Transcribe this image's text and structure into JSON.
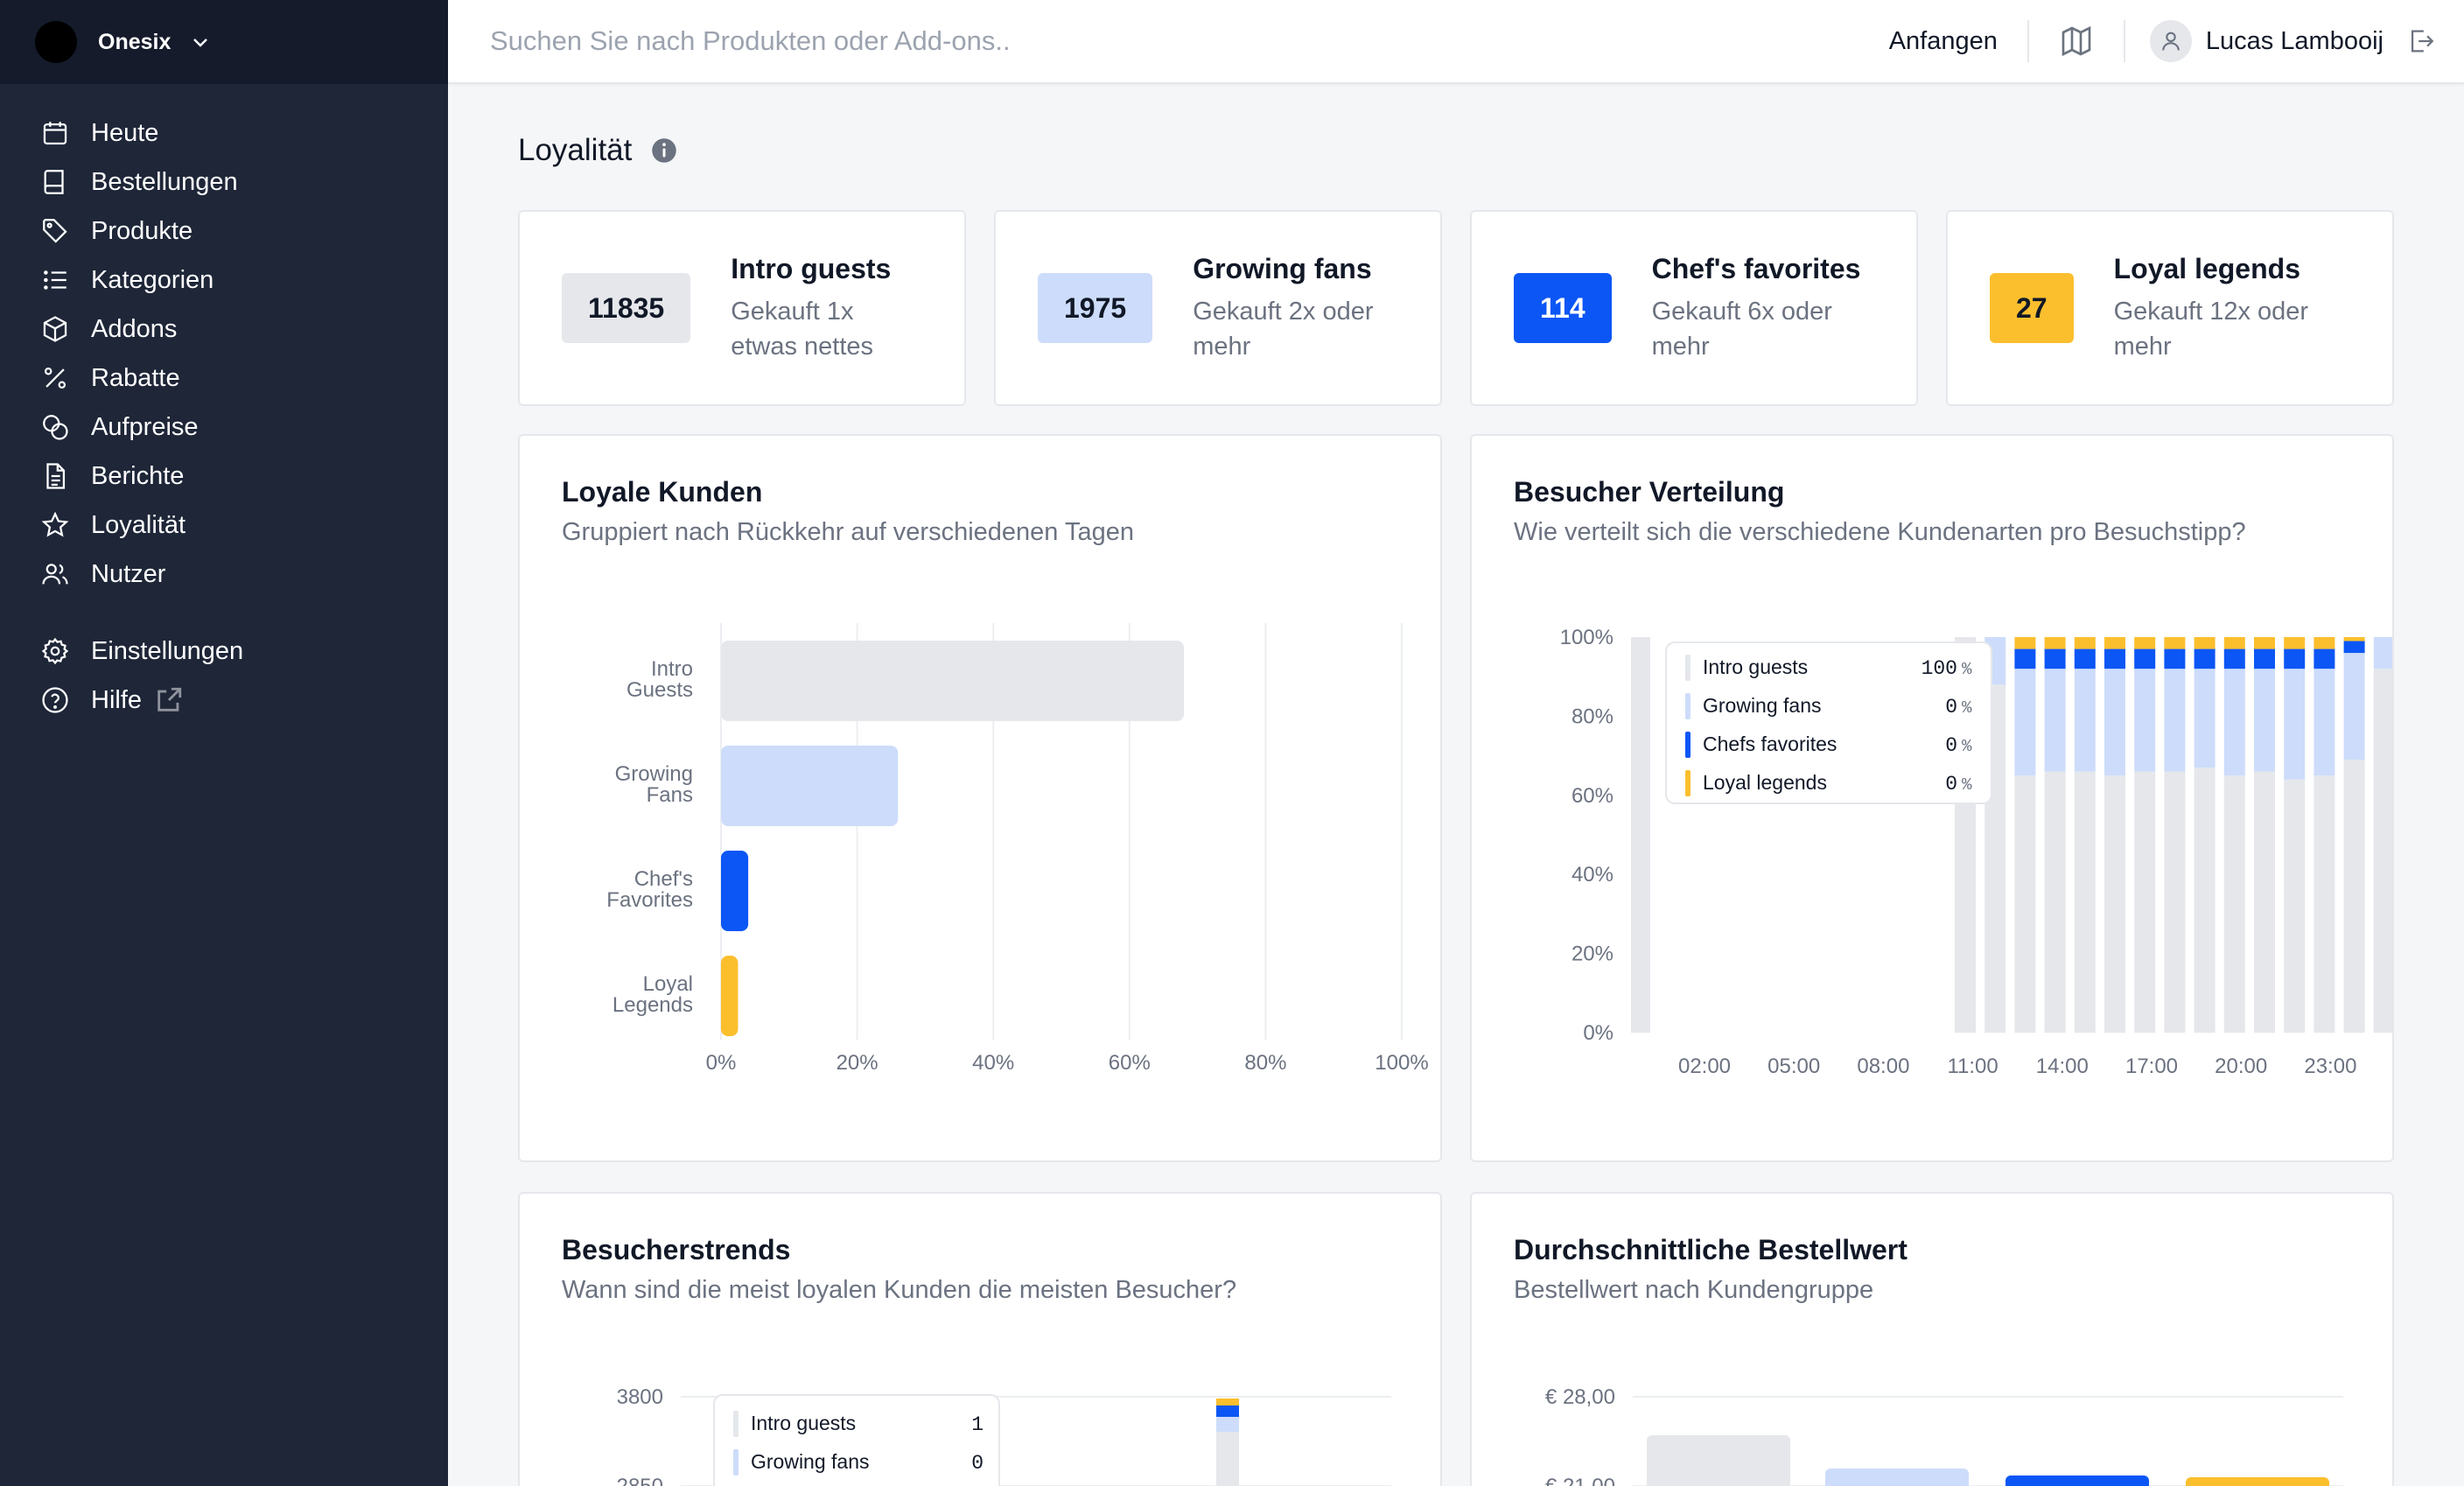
{
  "app": {
    "brand": "Onesix"
  },
  "colors": {
    "intro": "#e5e7eb",
    "growing": "#cddcfa",
    "chefs": "#0b56f5",
    "loyal": "#fbbf2e",
    "sidebar": "#1e2638"
  },
  "sidebar": {
    "items": [
      {
        "label": "Heute",
        "icon": "calendar-icon"
      },
      {
        "label": "Bestellungen",
        "icon": "book-icon"
      },
      {
        "label": "Produkte",
        "icon": "tag-icon"
      },
      {
        "label": "Kategorien",
        "icon": "list-icon"
      },
      {
        "label": "Addons",
        "icon": "cube-icon"
      },
      {
        "label": "Rabatte",
        "icon": "percent-icon"
      },
      {
        "label": "Aufpreise",
        "icon": "coins-icon"
      },
      {
        "label": "Berichte",
        "icon": "document-icon"
      },
      {
        "label": "Loyalität",
        "icon": "star-icon"
      },
      {
        "label": "Nutzer",
        "icon": "users-icon"
      }
    ],
    "bottom": [
      {
        "label": "Einstellungen",
        "icon": "gear-icon"
      },
      {
        "label": "Hilfe",
        "icon": "help-icon"
      }
    ]
  },
  "topbar": {
    "search_placeholder": "Suchen Sie nach Produkten oder Add-ons..",
    "start_label": "Anfangen",
    "user_name": "Lucas Lambooij"
  },
  "page": {
    "title": "Loyalität"
  },
  "stats": [
    {
      "value": "11835",
      "title": "Intro guests",
      "desc1": "Gekauft 1x",
      "desc2": "etwas nettes"
    },
    {
      "value": "1975",
      "title": "Growing fans",
      "desc1": "Gekauft 2x oder",
      "desc2": "mehr"
    },
    {
      "value": "114",
      "title": "Chef's favorites",
      "desc1": "Gekauft 6x oder",
      "desc2": "mehr"
    },
    {
      "value": "27",
      "title": "Loyal legends",
      "desc1": "Gekauft 12x oder",
      "desc2": "mehr"
    }
  ],
  "panels": {
    "loyal_customers": {
      "title": "Loyale Kunden",
      "subtitle": "Gruppiert nach Rückkehr auf verschiedenen Tagen"
    },
    "visitor_distribution": {
      "title": "Besucher Verteilung",
      "subtitle": "Wie verteilt sich die verschiedene Kundenarten pro Besuchstipp?"
    },
    "visitor_trends": {
      "title": "Besucherstrends",
      "subtitle": "Wann sind die meist loyalen Kunden die meisten Besucher?"
    },
    "avg_order": {
      "title": "Durchschnittliche Bestellwert",
      "subtitle": "Bestellwert nach Kundengruppe"
    }
  },
  "chart_data": [
    {
      "type": "bar",
      "orientation": "horizontal",
      "title": "Loyale Kunden",
      "categories": [
        [
          "Intro",
          "Guests"
        ],
        [
          "Growing",
          "Fans"
        ],
        [
          "Chef's",
          "Favorites"
        ],
        [
          "Loyal",
          "Legends"
        ]
      ],
      "values": [
        68,
        26,
        4,
        2.5
      ],
      "xticks": [
        "0%",
        "20%",
        "40%",
        "60%",
        "80%",
        "100%"
      ],
      "xlim": [
        0,
        100
      ]
    },
    {
      "type": "bar",
      "stacked": true,
      "title": "Besucher Verteilung",
      "yticks": [
        "100%",
        "80%",
        "60%",
        "40%",
        "20%",
        "0%"
      ],
      "xticks": [
        "02:00",
        "05:00",
        "08:00",
        "11:00",
        "14:00",
        "17:00",
        "20:00",
        "23:00"
      ],
      "series_names": [
        "Intro guests",
        "Growing fans",
        "Chefs favorites",
        "Loyal legends"
      ],
      "bars": [
        [
          100,
          0,
          0,
          0
        ],
        [
          88,
          12,
          0,
          0
        ],
        [
          65,
          27,
          5,
          3
        ],
        [
          66,
          26,
          5,
          3
        ],
        [
          66,
          26,
          5,
          3
        ],
        [
          65,
          27,
          5,
          3
        ],
        [
          66,
          26,
          5,
          3
        ],
        [
          66,
          26,
          5,
          3
        ],
        [
          67,
          25,
          5,
          3
        ],
        [
          65,
          27,
          5,
          3
        ],
        [
          66,
          26,
          5,
          3
        ],
        [
          64,
          28,
          5,
          3
        ],
        [
          65,
          27,
          5,
          3
        ],
        [
          69,
          27,
          3,
          1
        ],
        [
          92,
          8,
          0,
          0
        ]
      ],
      "tooltip": {
        "rows": [
          {
            "label": "Intro guests",
            "value": "100"
          },
          {
            "label": "Growing fans",
            "value": "0"
          },
          {
            "label": "Chefs favorites",
            "value": "0"
          },
          {
            "label": "Loyal legends",
            "value": "0"
          }
        ],
        "unit": "%"
      }
    },
    {
      "type": "bar",
      "stacked": true,
      "title": "Besucherstrends",
      "yticks": [
        "3800",
        "2850"
      ],
      "tooltip": {
        "rows": [
          {
            "label": "Intro guests",
            "value": "1"
          },
          {
            "label": "Growing fans",
            "value": "0"
          }
        ]
      }
    },
    {
      "type": "bar",
      "title": "Durchschnittliche Bestellwert",
      "yticks": [
        "€ 28,00",
        "€ 21,00"
      ]
    }
  ]
}
